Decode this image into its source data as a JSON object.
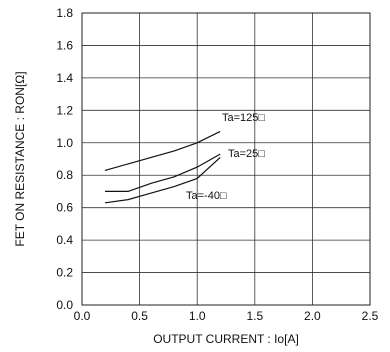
{
  "chart_data": {
    "type": "line",
    "title": "",
    "xlabel": "OUTPUT CURRENT : Io[A]",
    "ylabel": "FET ON RESISTANCE : RON[Ω]",
    "xlim": [
      0.0,
      2.5
    ],
    "ylim": [
      0.0,
      1.8
    ],
    "x_ticks": [
      "0.0",
      "0.5",
      "1.0",
      "1.5",
      "2.0",
      "2.5"
    ],
    "y_ticks": [
      "0.0",
      "0.2",
      "0.4",
      "0.6",
      "0.8",
      "1.0",
      "1.2",
      "1.4",
      "1.6",
      "1.8"
    ],
    "grid": true,
    "series": [
      {
        "name": "Ta=125℃",
        "label": "Ta=125□",
        "x": [
          0.2,
          0.4,
          0.6,
          0.8,
          1.0,
          1.2
        ],
        "y": [
          0.83,
          0.87,
          0.91,
          0.95,
          1.0,
          1.07
        ]
      },
      {
        "name": "Ta=25℃",
        "label": "Ta=25□",
        "x": [
          0.2,
          0.4,
          0.6,
          0.8,
          1.0,
          1.2
        ],
        "y": [
          0.7,
          0.7,
          0.75,
          0.79,
          0.85,
          0.93
        ]
      },
      {
        "name": "Ta=-40℃",
        "label": "Ta=-40□",
        "x": [
          0.2,
          0.4,
          0.6,
          0.8,
          1.0,
          1.2
        ],
        "y": [
          0.63,
          0.65,
          0.69,
          0.73,
          0.78,
          0.91
        ]
      }
    ]
  }
}
